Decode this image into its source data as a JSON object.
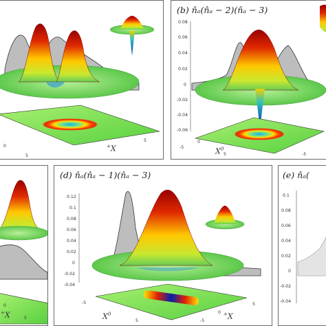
{
  "panels": [
    {
      "id": "a",
      "x_axis_label": "X",
      "x_axis_sup": "+",
      "x_ticks": [
        "0",
        "5",
        "5"
      ]
    },
    {
      "id": "b",
      "title": "(b)  n̂ₐ(n̂ₐ − 2)(n̂ₐ − 3)",
      "y_ticks": [
        "0.08",
        "0.06",
        "0.04",
        "0.02",
        "0",
        "-0.02",
        "-0.04",
        "-0.06"
      ],
      "x_axis_label": "X",
      "x_axis_sup": "0",
      "x_ticks": [
        "-5",
        "0",
        "5",
        "-5"
      ]
    },
    {
      "id": "c",
      "x_axis_label": "X",
      "x_axis_sup": "+",
      "x_ticks": [
        "0",
        "5"
      ]
    },
    {
      "id": "d",
      "title": "(d)  n̂ₐ(n̂ₐ − 1)(n̂ₐ − 3)",
      "y_ticks": [
        "0.12",
        "0.1",
        "0.08",
        "0.06",
        "0.04",
        "0.02",
        "0",
        "-0.02",
        "-0.04"
      ],
      "x_axis_label_left": "X",
      "x_axis_sup_left": "0",
      "x_axis_label_right": "X",
      "x_axis_sup_right": "+",
      "x_ticks": [
        "-5",
        "5",
        "-5",
        "0",
        "5"
      ]
    },
    {
      "id": "e",
      "title": "(e)  n̂ₐ(",
      "y_ticks": [
        "0.1",
        "0.08",
        "0.06",
        "0.04",
        "0.02",
        "0",
        "-0.02",
        "-0.04"
      ]
    }
  ],
  "colors": {
    "peak_top": "#b00000",
    "peak_mid": "#ffd000",
    "base_green": "#66dd55",
    "dip_blue": "#0030c0",
    "projection_gray": "#bdbdbd"
  }
}
